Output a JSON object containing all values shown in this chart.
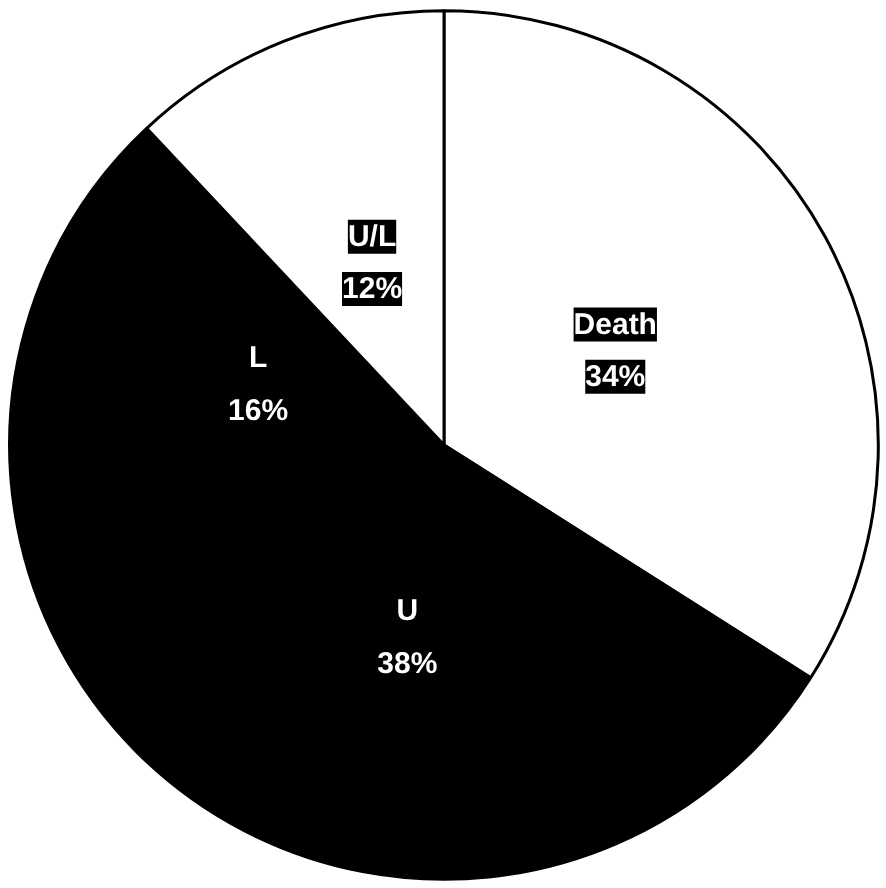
{
  "chart_data": {
    "type": "pie",
    "categories": [
      "Death",
      "U",
      "L",
      "U/L"
    ],
    "values": [
      34,
      38,
      16,
      12
    ],
    "colors": [
      "#ffffff",
      "#000000",
      "#000000",
      "#ffffff"
    ],
    "value_labels": [
      "34%",
      "38%",
      "16%",
      "12%"
    ]
  }
}
